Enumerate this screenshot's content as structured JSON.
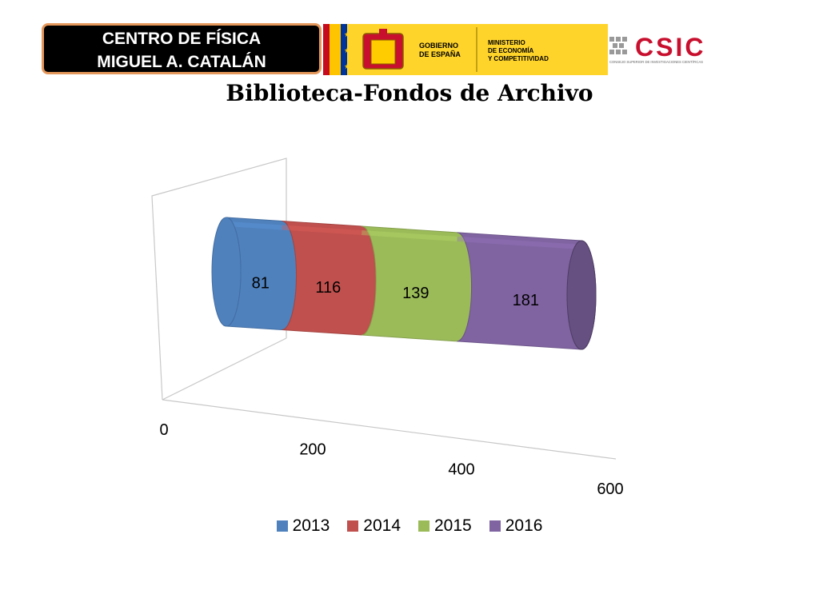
{
  "header": {
    "line1": "CENTRO DE FÍSICA",
    "line2": "MIGUEL A. CATALÁN"
  },
  "logos": {
    "gobierno_line1": "GOBIERNO",
    "gobierno_line2": "DE ESPAÑA",
    "ministerio_line1": "MINISTERIO",
    "ministerio_line2": "DE ECONOMÍA",
    "ministerio_line3": "Y COMPETITIVIDAD",
    "csic_text": "CSIC",
    "csic_sub": "CONSEJO SUPERIOR DE INVESTIGACIONES CIENTÍFICAS"
  },
  "chart_data": {
    "type": "bar",
    "orientation": "horizontal",
    "stacked": true,
    "style": "3d-cylinder",
    "title": "Biblioteca-Fondos de Archivo",
    "xlabel": "",
    "ylabel": "",
    "xlim": [
      0,
      600
    ],
    "ticks": [
      0,
      200,
      400,
      600
    ],
    "tick_labels": [
      "0",
      "200",
      "400",
      "600"
    ],
    "series": [
      {
        "name": "2013",
        "value": 81,
        "color": "#4f81bd",
        "label": "81"
      },
      {
        "name": "2014",
        "value": 116,
        "color": "#c0504d",
        "label": "116"
      },
      {
        "name": "2015",
        "value": 139,
        "color": "#9bbb59",
        "label": "139"
      },
      {
        "name": "2016",
        "value": 181,
        "color": "#8064a2",
        "label": "181"
      }
    ],
    "legend_position": "bottom",
    "grid": false
  }
}
